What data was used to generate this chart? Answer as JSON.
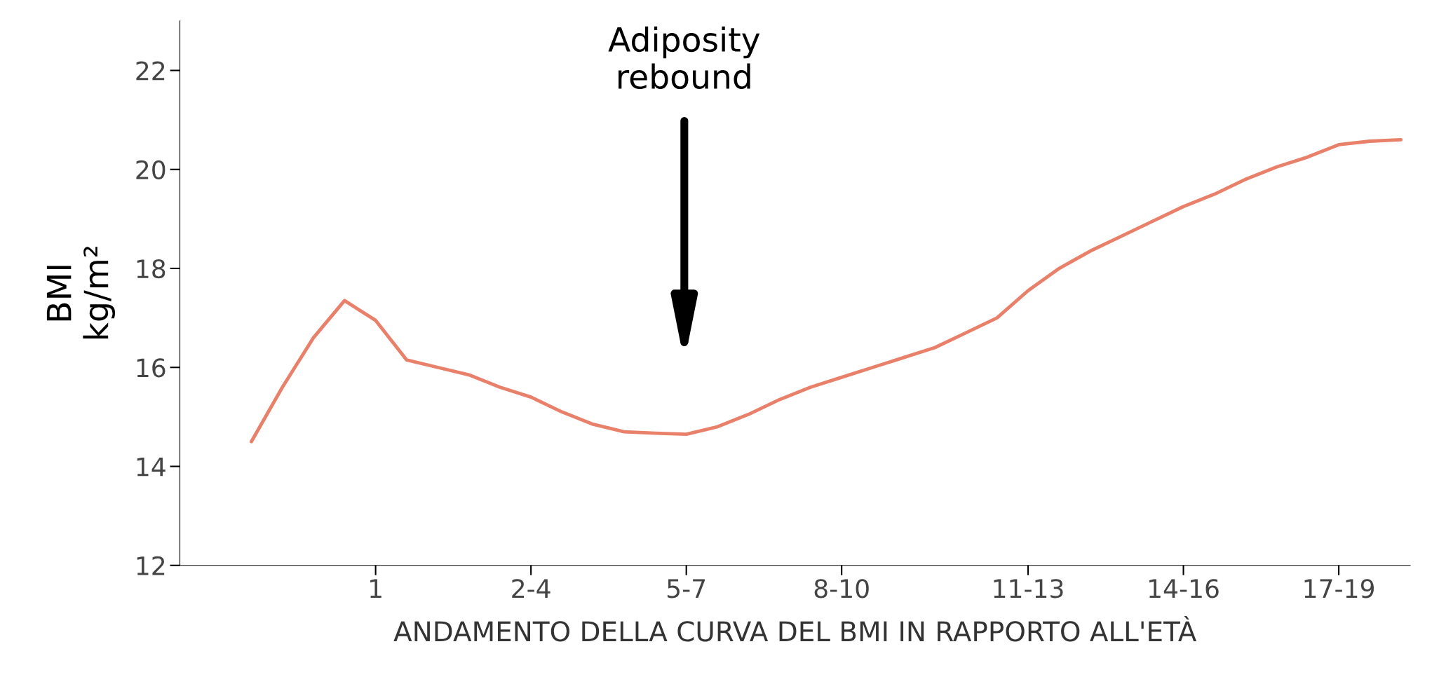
{
  "chart_data": {
    "type": "line",
    "xlabel": "ANDAMENTO DELLA CURVA DEL BMI IN RAPPORTO ALL'ETÀ",
    "ylabel": "BMI\nkg/m²",
    "categories": [
      null,
      null,
      null,
      null,
      null,
      null,
      "1",
      null,
      null,
      null,
      null,
      "2-4",
      null,
      null,
      null,
      null,
      "5-7",
      null,
      null,
      null,
      null,
      "8-10",
      null,
      null,
      null,
      null,
      null,
      "11-13",
      null,
      null,
      null,
      null,
      "14-16",
      null,
      null,
      null,
      null,
      "17-19",
      null,
      null
    ],
    "series": [
      {
        "color": "#e8806a",
        "values": [
          null,
          null,
          14.5,
          15.6,
          16.6,
          17.35,
          16.95,
          16.15,
          16.0,
          15.85,
          15.6,
          15.4,
          15.1,
          14.85,
          14.7,
          14.67,
          14.65,
          14.8,
          15.05,
          15.35,
          15.6,
          15.8,
          16.0,
          16.2,
          16.4,
          16.7,
          17.0,
          17.55,
          18.0,
          18.35,
          18.65,
          18.95,
          19.25,
          19.5,
          19.8,
          20.05,
          20.25,
          20.5,
          20.57,
          20.6
        ]
      }
    ],
    "ylim": [
      12,
      23
    ],
    "yticks": [
      12,
      14,
      16,
      18,
      20,
      22
    ],
    "annotations": [
      "Adiposity\nrebound"
    ],
    "grid": false,
    "legend": false
  }
}
